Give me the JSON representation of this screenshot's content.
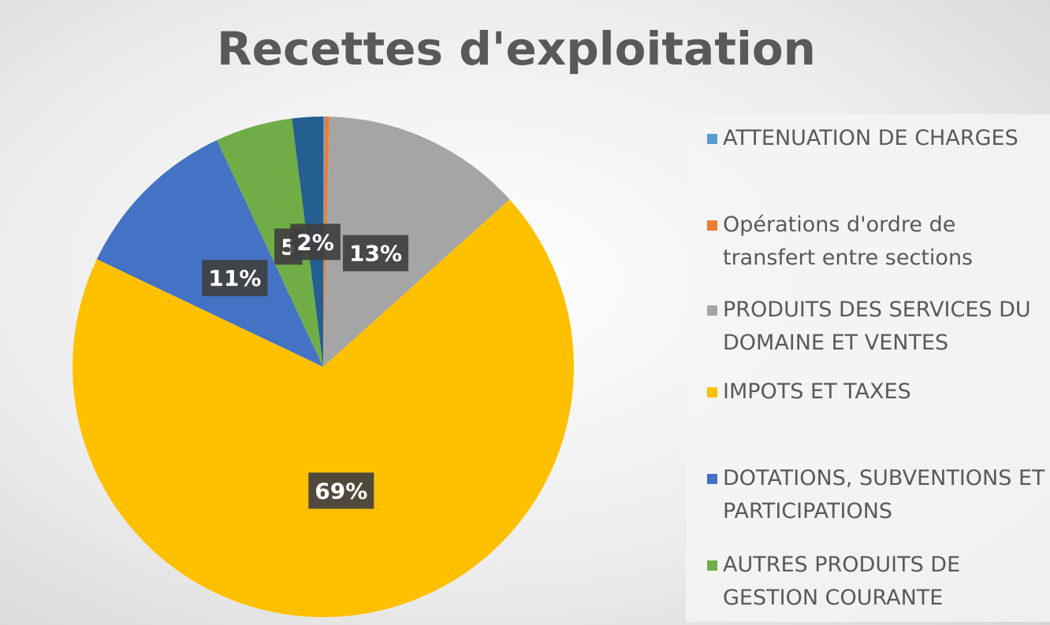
{
  "chart_data": {
    "type": "pie",
    "title": "Recettes d'exploitation",
    "categories": [
      "ATTENUATION DE CHARGES",
      "Opérations d'ordre de transfert entre sections",
      "PRODUITS DES SERVICES DU DOMAINE ET VENTES",
      "IMPOTS ET TAXES",
      "DOTATIONS, SUBVENTIONS ET PARTICIPATIONS",
      "AUTRES PRODUITS DE GESTION COURANTE",
      null
    ],
    "values": [
      0.1,
      0.3,
      13,
      69,
      11,
      5,
      2
    ],
    "value_labels": [
      null,
      null,
      "13%",
      "69%",
      "11%",
      "5",
      "2%"
    ],
    "colors": [
      "#5b9bd5",
      "#ed7d31",
      "#a5a5a5",
      "#ffc000",
      "#4472c4",
      "#70ad47",
      "#255e91"
    ],
    "legend": "right"
  }
}
